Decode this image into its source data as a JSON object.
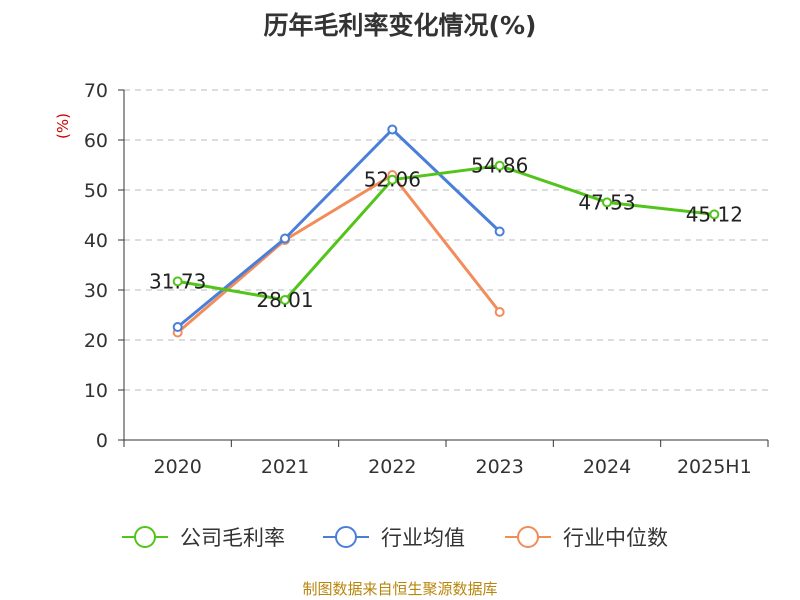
{
  "chart_data": {
    "type": "line",
    "title": "历年毛利率变化情况(%)",
    "ylabel": "(%)",
    "xlabel": "",
    "categories": [
      "2020",
      "2021",
      "2022",
      "2023",
      "2024",
      "2025H1"
    ],
    "ylim": [
      0,
      70
    ],
    "yticks": [
      0,
      10,
      20,
      30,
      40,
      50,
      60,
      70
    ],
    "grid": true,
    "legend_position": "bottom",
    "series": [
      {
        "name": "公司毛利率",
        "color": "#52c41a",
        "values": [
          31.73,
          28.01,
          52.06,
          54.86,
          47.53,
          45.12
        ],
        "labels": [
          "31.73",
          "28.01",
          "52.06",
          "54.86",
          "47.53",
          "45.12"
        ]
      },
      {
        "name": "行业均值",
        "color": "#4a7fd9",
        "values": [
          22.6,
          40.3,
          62.1,
          41.7,
          null,
          null
        ]
      },
      {
        "name": "行业中位数",
        "color": "#f28c5a",
        "values": [
          21.5,
          40.0,
          53.0,
          25.6,
          null,
          null
        ]
      }
    ]
  },
  "footer": "制图数据来自恒生聚源数据库"
}
